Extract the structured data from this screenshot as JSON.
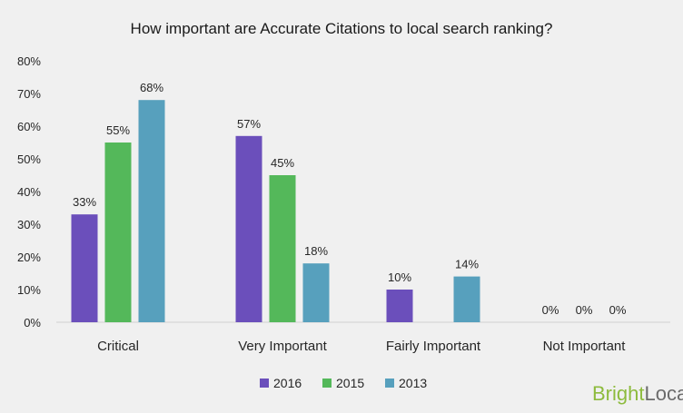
{
  "chart_data": {
    "type": "bar",
    "title": "How important are Accurate Citations to local search ranking?",
    "categories": [
      "Critical",
      "Very Important",
      "Fairly Important",
      "Not Important"
    ],
    "series": [
      {
        "name": "2016",
        "values": [
          33,
          57,
          10,
          0
        ],
        "labels": [
          "33%",
          "57%",
          "10%",
          "0%"
        ],
        "color": "#6b4fbb"
      },
      {
        "name": "2015",
        "values": [
          55,
          45,
          0,
          0
        ],
        "labels": [
          "55%",
          "45%",
          "",
          "0%"
        ],
        "color": "#54b85a"
      },
      {
        "name": "2013",
        "values": [
          68,
          18,
          14,
          0
        ],
        "labels": [
          "68%",
          "18%",
          "14%",
          "0%"
        ],
        "color": "#57a0bd"
      }
    ],
    "ylim": [
      0,
      80
    ],
    "yticks": [
      "0%",
      "10%",
      "20%",
      "30%",
      "40%",
      "50%",
      "60%",
      "70%",
      "80%"
    ],
    "grid": false,
    "legend_position": "bottom"
  },
  "brand": {
    "part1": "Bright",
    "part2": "Local",
    "colors": {
      "bright": "#8dbb3d",
      "local": "#6b6b6b"
    }
  }
}
